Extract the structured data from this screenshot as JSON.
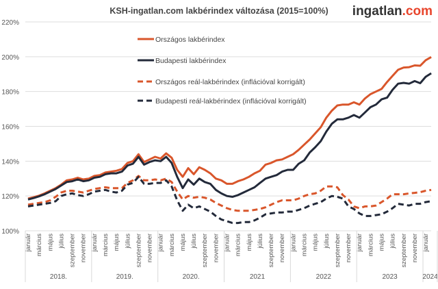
{
  "chart_data": {
    "type": "line",
    "title": "KSH-ingatlan.com lakbérindex változása (2015=100%)",
    "logo": {
      "name": "ingatlan",
      "suffix": ".com"
    },
    "ylim": [
      100,
      220
    ],
    "y_ticks": [
      100,
      120,
      140,
      160,
      180,
      200,
      220
    ],
    "y_tick_format": "%",
    "grid": "horizontal",
    "legend_position": "top-center",
    "x_start": "2018-01",
    "x_end": "2024-02",
    "month_tick_labels": [
      "január",
      "március",
      "május",
      "július",
      "szeptember",
      "november"
    ],
    "year_labels": [
      "2018.",
      "2019.",
      "2020.",
      "2021",
      "2022",
      "2023",
      "2024"
    ],
    "colors": {
      "orszagos": "#d9562b",
      "budapest": "#232a3a",
      "grid": "#dddddd",
      "logo_accent": "#e8452c"
    },
    "series": [
      {
        "name": "Országos lakbérindex",
        "color": "#d9562b",
        "dashed": false,
        "values": [
          118.5,
          119.3,
          120.2,
          121.5,
          123,
          124.5,
          126.5,
          129,
          129.5,
          130.5,
          129.5,
          130,
          131.5,
          132,
          133.5,
          134,
          134.5,
          135.5,
          139,
          140,
          144,
          139.5,
          141,
          142.5,
          141.5,
          144.5,
          142,
          135,
          131,
          136,
          132.5,
          136.5,
          135,
          133,
          130,
          129,
          127,
          127,
          128.5,
          129.5,
          131,
          133,
          134.5,
          138,
          139,
          140.5,
          141,
          142.5,
          144,
          146.5,
          149.5,
          152.5,
          156,
          159.5,
          165,
          169,
          172,
          172.5,
          172.5,
          173.8,
          172.5,
          176,
          178.5,
          180,
          181.5,
          185.5,
          189,
          192.5,
          193.8,
          194,
          195,
          194.8,
          198,
          199.8
        ]
      },
      {
        "name": "Budapesti lakbérindex",
        "color": "#232a3a",
        "dashed": false,
        "values": [
          118,
          118.8,
          119.8,
          121,
          122.5,
          124,
          126,
          128,
          128.5,
          129.5,
          128.5,
          129,
          130.5,
          131,
          132.5,
          133,
          133,
          134,
          137.5,
          138.5,
          142.5,
          138,
          139.5,
          140.5,
          140,
          142.5,
          139,
          131,
          124.5,
          129.5,
          126.5,
          130,
          128,
          127,
          123.5,
          121.5,
          120,
          119.5,
          120.5,
          122,
          123.5,
          125,
          127.5,
          130,
          131,
          132,
          134,
          135,
          135,
          138.5,
          140.5,
          145,
          148,
          151.5,
          157,
          161.5,
          164,
          164,
          165,
          166.5,
          165,
          168,
          171,
          172.5,
          175.5,
          176.5,
          181,
          184.5,
          185,
          184.5,
          186,
          184.8,
          188.5,
          190.5
        ]
      },
      {
        "name": "Országos reál-lakbérindex (inflációval korrigált)",
        "color": "#d9562b",
        "dashed": true,
        "values": [
          115,
          115.5,
          116,
          116.5,
          117.5,
          119.5,
          122,
          123,
          123,
          122.5,
          122,
          123,
          124,
          124.5,
          125,
          124.5,
          124.5,
          124.5,
          127.5,
          129,
          131.5,
          129,
          129,
          129.5,
          129,
          130,
          128,
          122.5,
          118,
          120,
          119,
          119.5,
          119,
          118,
          116,
          114.5,
          113,
          112,
          111.5,
          111.5,
          111.5,
          112,
          112.5,
          113.5,
          115,
          116.5,
          117.5,
          117.5,
          117.5,
          118.5,
          120,
          121,
          121.5,
          123,
          125.5,
          125.5,
          125,
          120.5,
          118,
          114,
          113,
          114,
          114,
          114.5,
          116.5,
          118.5,
          121,
          121,
          121,
          121.5,
          121.8,
          122.2,
          123,
          123.5
        ]
      },
      {
        "name": "Budapesti reál-lakbérindex (inflációval korrigált)",
        "color": "#232a3a",
        "dashed": true,
        "values": [
          114,
          114.5,
          115,
          115.5,
          116,
          117,
          120,
          121,
          121.5,
          120.5,
          120,
          121,
          122.5,
          123,
          123.5,
          122.5,
          122,
          123,
          126.5,
          127.5,
          131,
          127,
          127,
          127.5,
          127.5,
          129,
          125.5,
          117.5,
          111.5,
          115,
          113,
          114,
          112.5,
          111,
          108.5,
          106.5,
          105.5,
          104.5,
          104.5,
          105,
          105,
          106,
          107.5,
          109.5,
          110,
          110.5,
          110.5,
          111,
          111,
          112,
          113,
          114.5,
          115.5,
          116.5,
          118.5,
          120,
          119.5,
          118.5,
          114,
          112.5,
          110,
          108.5,
          108.5,
          109,
          109.5,
          111,
          113,
          115.5,
          115,
          114.5,
          115.5,
          115.5,
          116.5,
          117
        ]
      }
    ]
  }
}
